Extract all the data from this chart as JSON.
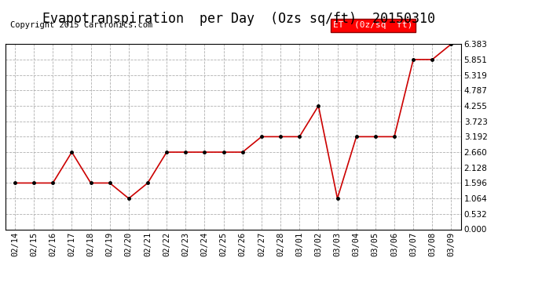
{
  "title": "Evapotranspiration  per Day  (Ozs sq/ft)  20150310",
  "copyright": "Copyright 2015 Cartronics.com",
  "legend_label": "ET  (0z/sq  ft)",
  "dates": [
    "02/14",
    "02/15",
    "02/16",
    "02/17",
    "02/18",
    "02/19",
    "02/20",
    "02/21",
    "02/22",
    "02/23",
    "02/24",
    "02/25",
    "02/26",
    "02/27",
    "02/28",
    "03/01",
    "03/02",
    "03/03",
    "03/04",
    "03/05",
    "03/06",
    "03/07",
    "03/08",
    "03/09"
  ],
  "values": [
    1.596,
    1.596,
    1.596,
    2.66,
    1.596,
    1.596,
    1.064,
    1.596,
    2.66,
    2.66,
    2.66,
    2.66,
    2.66,
    3.192,
    3.192,
    3.192,
    4.255,
    1.064,
    3.192,
    3.192,
    3.192,
    5.851,
    5.851,
    6.383
  ],
  "line_color": "#cc0000",
  "marker_color": "#000000",
  "background_color": "#ffffff",
  "grid_color": "#b0b0b0",
  "yticks": [
    0.0,
    0.532,
    1.064,
    1.596,
    2.128,
    2.66,
    3.192,
    3.723,
    4.255,
    4.787,
    5.319,
    5.851,
    6.383
  ],
  "ylim": [
    0.0,
    6.383
  ],
  "title_fontsize": 12,
  "copyright_fontsize": 7.5,
  "legend_fontsize": 8,
  "tick_fontsize": 7.5
}
